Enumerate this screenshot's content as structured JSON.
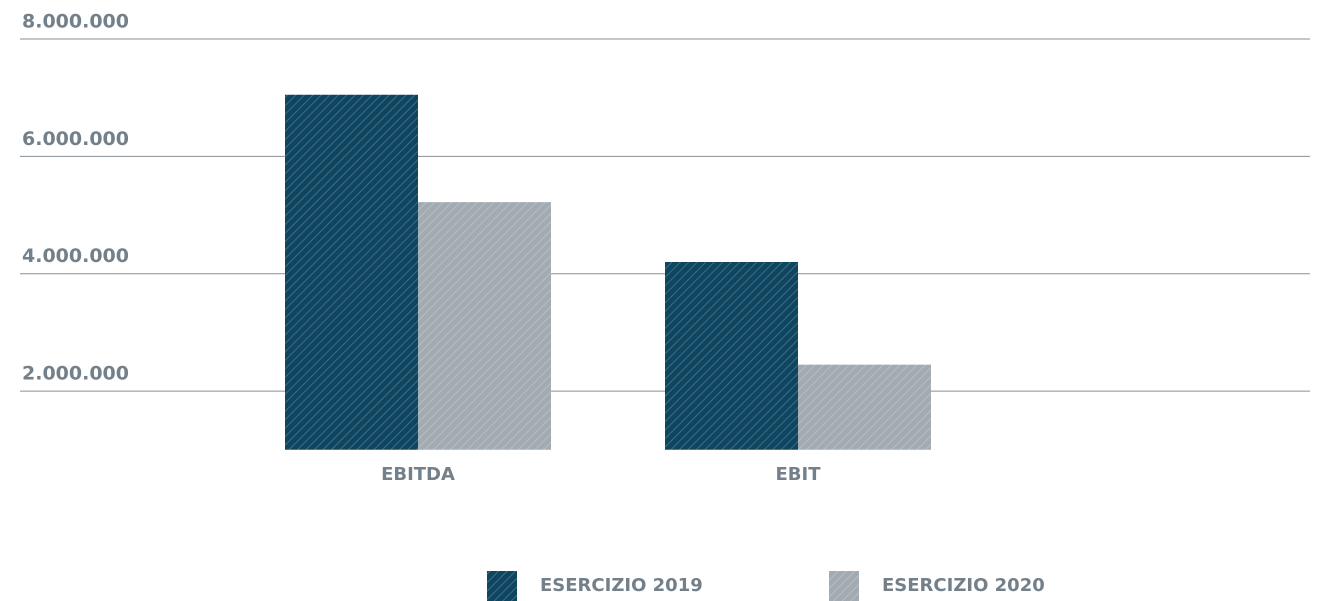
{
  "chart_data": {
    "type": "bar",
    "categories": [
      "EBITDA",
      "EBIT"
    ],
    "series": [
      {
        "name": "ESERCIZIO 2019",
        "color": "#0e4560",
        "values": [
          7050000,
          4200000
        ]
      },
      {
        "name": "ESERCIZIO 2020",
        "color": "#a3abb2",
        "values": [
          5220000,
          2450000
        ]
      }
    ],
    "ylim": [
      1000000,
      8000000
    ],
    "yticks": [
      {
        "value": 2000000,
        "label": "2.000.000"
      },
      {
        "value": 4000000,
        "label": "4.000.000"
      },
      {
        "value": 6000000,
        "label": "6.000.000"
      },
      {
        "value": 8000000,
        "label": "8.000.000"
      }
    ],
    "grid": true
  }
}
